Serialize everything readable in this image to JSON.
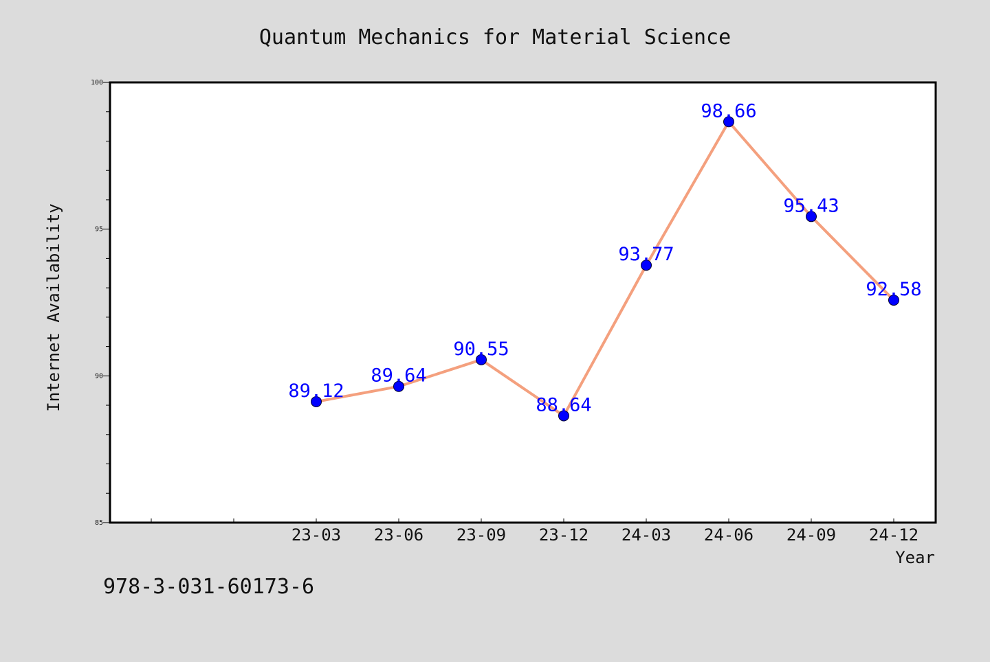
{
  "chart_data": {
    "type": "line",
    "title": "Quantum Mechanics for Material Science",
    "xlabel": "Year",
    "ylabel": "Internet Availability",
    "categories": [
      "23-03",
      "23-06",
      "23-09",
      "23-12",
      "24-03",
      "24-06",
      "24-09",
      "24-12"
    ],
    "x_extra_minor_slots": 2,
    "series": [
      {
        "values": [
          89.12,
          89.64,
          90.55,
          88.64,
          93.77,
          98.66,
          95.43,
          92.58
        ],
        "data_labels": [
          "89.12",
          "89.64",
          "90.55",
          "88.64",
          "93.77",
          "98.66",
          "95.43",
          "92.58"
        ]
      }
    ],
    "ylim": [
      85,
      100
    ],
    "yticks_major": [
      "85",
      "90",
      "95",
      "100"
    ],
    "y_minor_step": 1,
    "grid": false,
    "colors": {
      "line": "#f4a07e",
      "marker": "#0000ff",
      "data_label": "#0000ff",
      "background": "#dcdcdc",
      "plot_background": "#ffffff"
    }
  },
  "footer_text": "978-3-031-60173-6"
}
